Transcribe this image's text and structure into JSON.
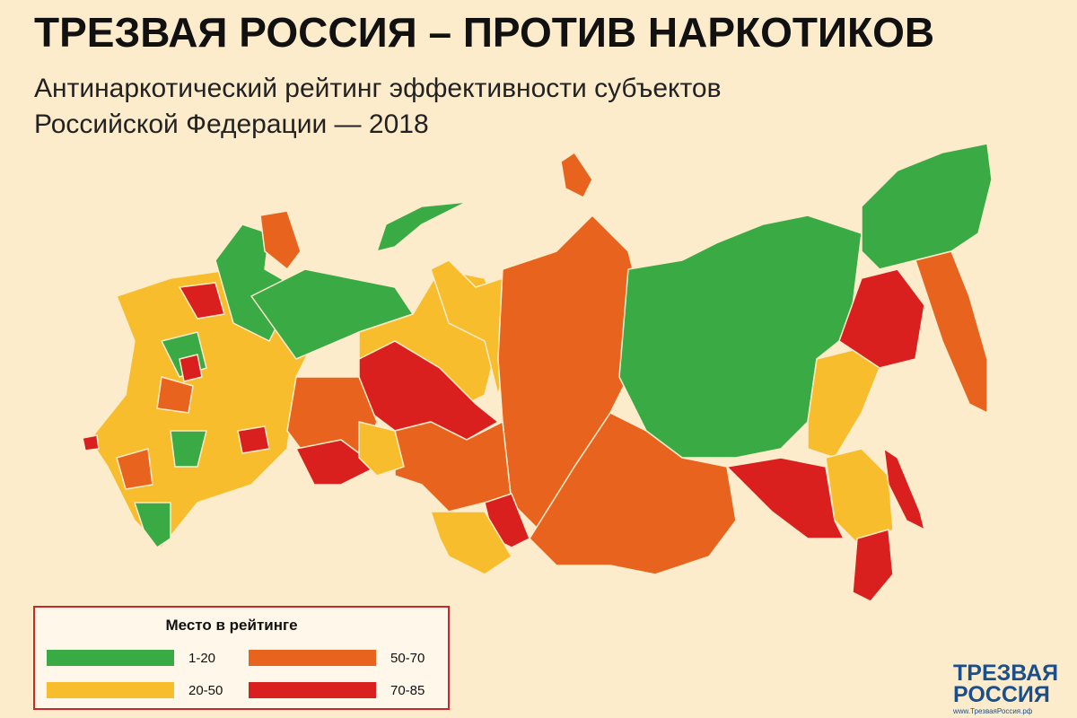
{
  "header": {
    "title": "ТРЕЗВАЯ РОССИЯ – ПРОТИВ НАРКОТИКОВ",
    "subtitle": [
      "Антинаркотический рейтинг эффективности субъектов",
      "Российской Федерации — 2018"
    ]
  },
  "legend": {
    "title": "Место в рейтинге",
    "items": [
      {
        "label": "1-20",
        "color": "#3aaa45"
      },
      {
        "label": "20-50",
        "color": "#f7bd2c"
      },
      {
        "label": "50-70",
        "color": "#e8641e"
      },
      {
        "label": "70-85",
        "color": "#d9201f"
      }
    ]
  },
  "logo": {
    "name": [
      "ТРЕЗВАЯ",
      "РОССИЯ"
    ],
    "url": "www.ТрезваяРоссия.рф"
  }
}
